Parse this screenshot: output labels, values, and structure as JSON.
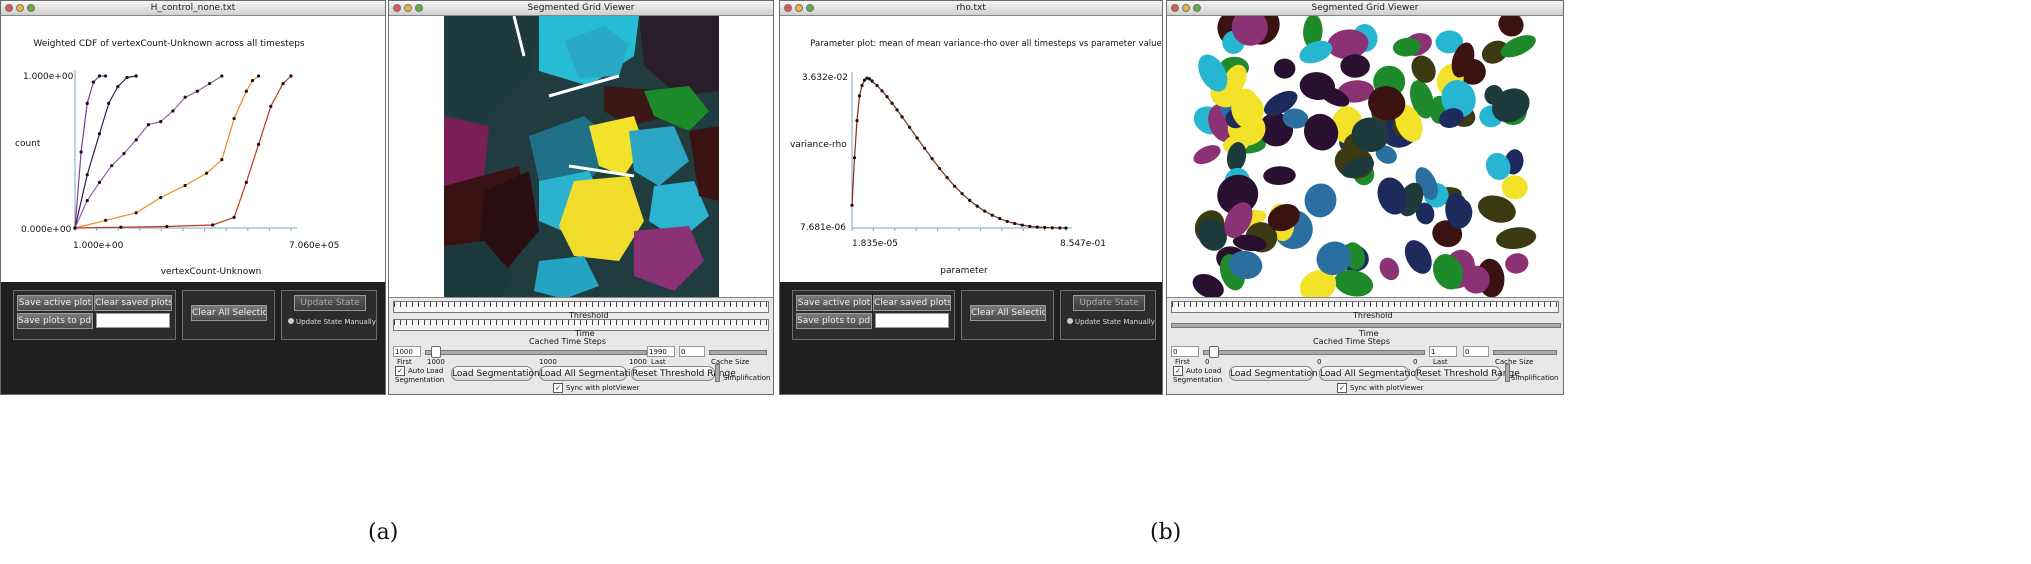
{
  "panels": {
    "a": {
      "plot_window": {
        "title": "H_control_none.txt",
        "plot_title": "Weighted CDF of vertexCount-Unknown across all timesteps",
        "ylabel": "count",
        "xlabel": "vertexCount-Unknown",
        "ytick_top": "1.000e+00",
        "ytick_bottom": "0.000e+00",
        "xtick_left": "1.000e+00",
        "xtick_right": "7.060e+05",
        "buttons": {
          "save_active": "Save active plot",
          "clear_saved": "Clear saved plots",
          "save_to_pdf": "Save plots to pdf",
          "clear_selections": "Clear All Selections",
          "update_state": "Update State",
          "update_manually": "Update State Manually"
        }
      },
      "grid_window": {
        "title": "Segmented Grid Viewer",
        "threshold_label": "Threshold",
        "time_label": "Time",
        "cached_label": "Cached Time Steps",
        "first_value": "1000",
        "first_label": "First",
        "mid_left": "1000",
        "mid_center": "1000",
        "mid_right": "1000",
        "last_value": "1990",
        "last_label": "Last",
        "cache_value": "0",
        "cache_label": "Cache Size",
        "auto_load": "Auto Load Segmentation",
        "load_seg": "Load Segmentation",
        "load_all": "Load All Segmentations",
        "reset_threshold": "Reset Threshold Range",
        "simplification": "Simplification",
        "sync": "Sync with plotViewer"
      }
    },
    "b": {
      "plot_window": {
        "title": "rho.txt",
        "plot_title": "Parameter plot: mean of mean variance-rho over all timesteps vs parameter value",
        "ylabel": "variance-rho",
        "xlabel": "parameter",
        "ytick_top": "3.632e-02",
        "ytick_bottom": "7.681e-06",
        "xtick_left": "1.835e-05",
        "xtick_right": "8.547e-01",
        "buttons": {
          "save_active": "Save active plot",
          "clear_saved": "Clear saved plots",
          "save_to_pdf": "Save plots to pdf",
          "clear_selections": "Clear All Selections",
          "update_state": "Update State",
          "update_manually": "Update State Manually"
        }
      },
      "grid_window": {
        "title": "Segmented Grid Viewer",
        "threshold_label": "Threshold",
        "time_label": "Time",
        "cached_label": "Cached Time Steps",
        "first_value": "0",
        "first_label": "First",
        "mid_left": "0",
        "mid_center": "0",
        "mid_right": "0",
        "last_value": "1",
        "last_label": "Last",
        "cache_value": "0",
        "cache_label": "Cache Size",
        "auto_load": "Auto Load Segmentation",
        "load_seg": "Load Segmentation",
        "load_all": "Load All Segmentations",
        "reset_threshold": "Reset Threshold Range",
        "simplification": "Simplification",
        "sync": "Sync with plotViewer"
      }
    }
  },
  "captions": {
    "a": "(a)",
    "b": "(b)"
  },
  "chart_data": [
    {
      "type": "line",
      "title": "Weighted CDF of vertexCount-Unknown across all timesteps",
      "xlabel": "vertexCount-Unknown",
      "ylabel": "count",
      "xlim": [
        1,
        706000
      ],
      "ylim": [
        0,
        1
      ],
      "series": [
        {
          "color": "#7a3fa0",
          "x": [
            1,
            20000,
            40000,
            60000,
            80000,
            100000
          ],
          "y": [
            0,
            0.5,
            0.82,
            0.96,
            1.0,
            1.0
          ]
        },
        {
          "color": "#2a2350",
          "x": [
            1,
            40000,
            80000,
            110000,
            140000,
            170000,
            200000
          ],
          "y": [
            0,
            0.35,
            0.62,
            0.82,
            0.93,
            0.99,
            1.0
          ]
        },
        {
          "color": "#9a5fb2",
          "x": [
            1,
            40000,
            80000,
            120000,
            160000,
            200000,
            240000,
            280000,
            320000,
            360000,
            400000,
            440000,
            480000
          ],
          "y": [
            0,
            0.18,
            0.3,
            0.41,
            0.49,
            0.58,
            0.68,
            0.7,
            0.77,
            0.86,
            0.9,
            0.95,
            1.0
          ]
        },
        {
          "color": "#f08a1e",
          "x": [
            1,
            100000,
            200000,
            280000,
            360000,
            430000,
            480000,
            520000,
            560000,
            580000,
            600000
          ],
          "y": [
            0,
            0.05,
            0.1,
            0.2,
            0.28,
            0.36,
            0.45,
            0.72,
            0.9,
            0.97,
            1.0
          ]
        },
        {
          "color": "#c33620",
          "x": [
            1,
            150000,
            300000,
            450000,
            520000,
            560000,
            600000,
            640000,
            680000,
            706000
          ],
          "y": [
            0,
            0.005,
            0.01,
            0.02,
            0.07,
            0.3,
            0.55,
            0.8,
            0.95,
            1.0
          ]
        }
      ]
    },
    {
      "type": "line",
      "title": "Parameter plot: mean of mean variance-rho over all timesteps vs parameter value",
      "xlabel": "parameter",
      "ylabel": "variance-rho",
      "xlim": [
        1.835e-05,
        0.8547
      ],
      "ylim": [
        7.681e-06,
        0.03632
      ],
      "series": [
        {
          "color": "#8a2a10",
          "x": [
            1.835e-05,
            0.01,
            0.02,
            0.03,
            0.04,
            0.05,
            0.06,
            0.07,
            0.08,
            0.1,
            0.12,
            0.14,
            0.16,
            0.18,
            0.2,
            0.23,
            0.26,
            0.29,
            0.32,
            0.35,
            0.38,
            0.41,
            0.44,
            0.47,
            0.5,
            0.53,
            0.56,
            0.59,
            0.62,
            0.65,
            0.68,
            0.71,
            0.74,
            0.77,
            0.8,
            0.83,
            0.8547
          ],
          "y": [
            0.0055,
            0.017,
            0.026,
            0.032,
            0.0345,
            0.0358,
            0.0363,
            0.0361,
            0.0356,
            0.0345,
            0.0332,
            0.0318,
            0.0302,
            0.0286,
            0.0269,
            0.0244,
            0.0218,
            0.0193,
            0.0168,
            0.0144,
            0.0122,
            0.0101,
            0.0083,
            0.0067,
            0.0053,
            0.0041,
            0.0031,
            0.0023,
            0.0016,
            0.0011,
            0.0007,
            0.0004,
            0.00022,
            0.00012,
            5e-05,
            2e-05,
            7.7e-06
          ]
        }
      ]
    }
  ]
}
